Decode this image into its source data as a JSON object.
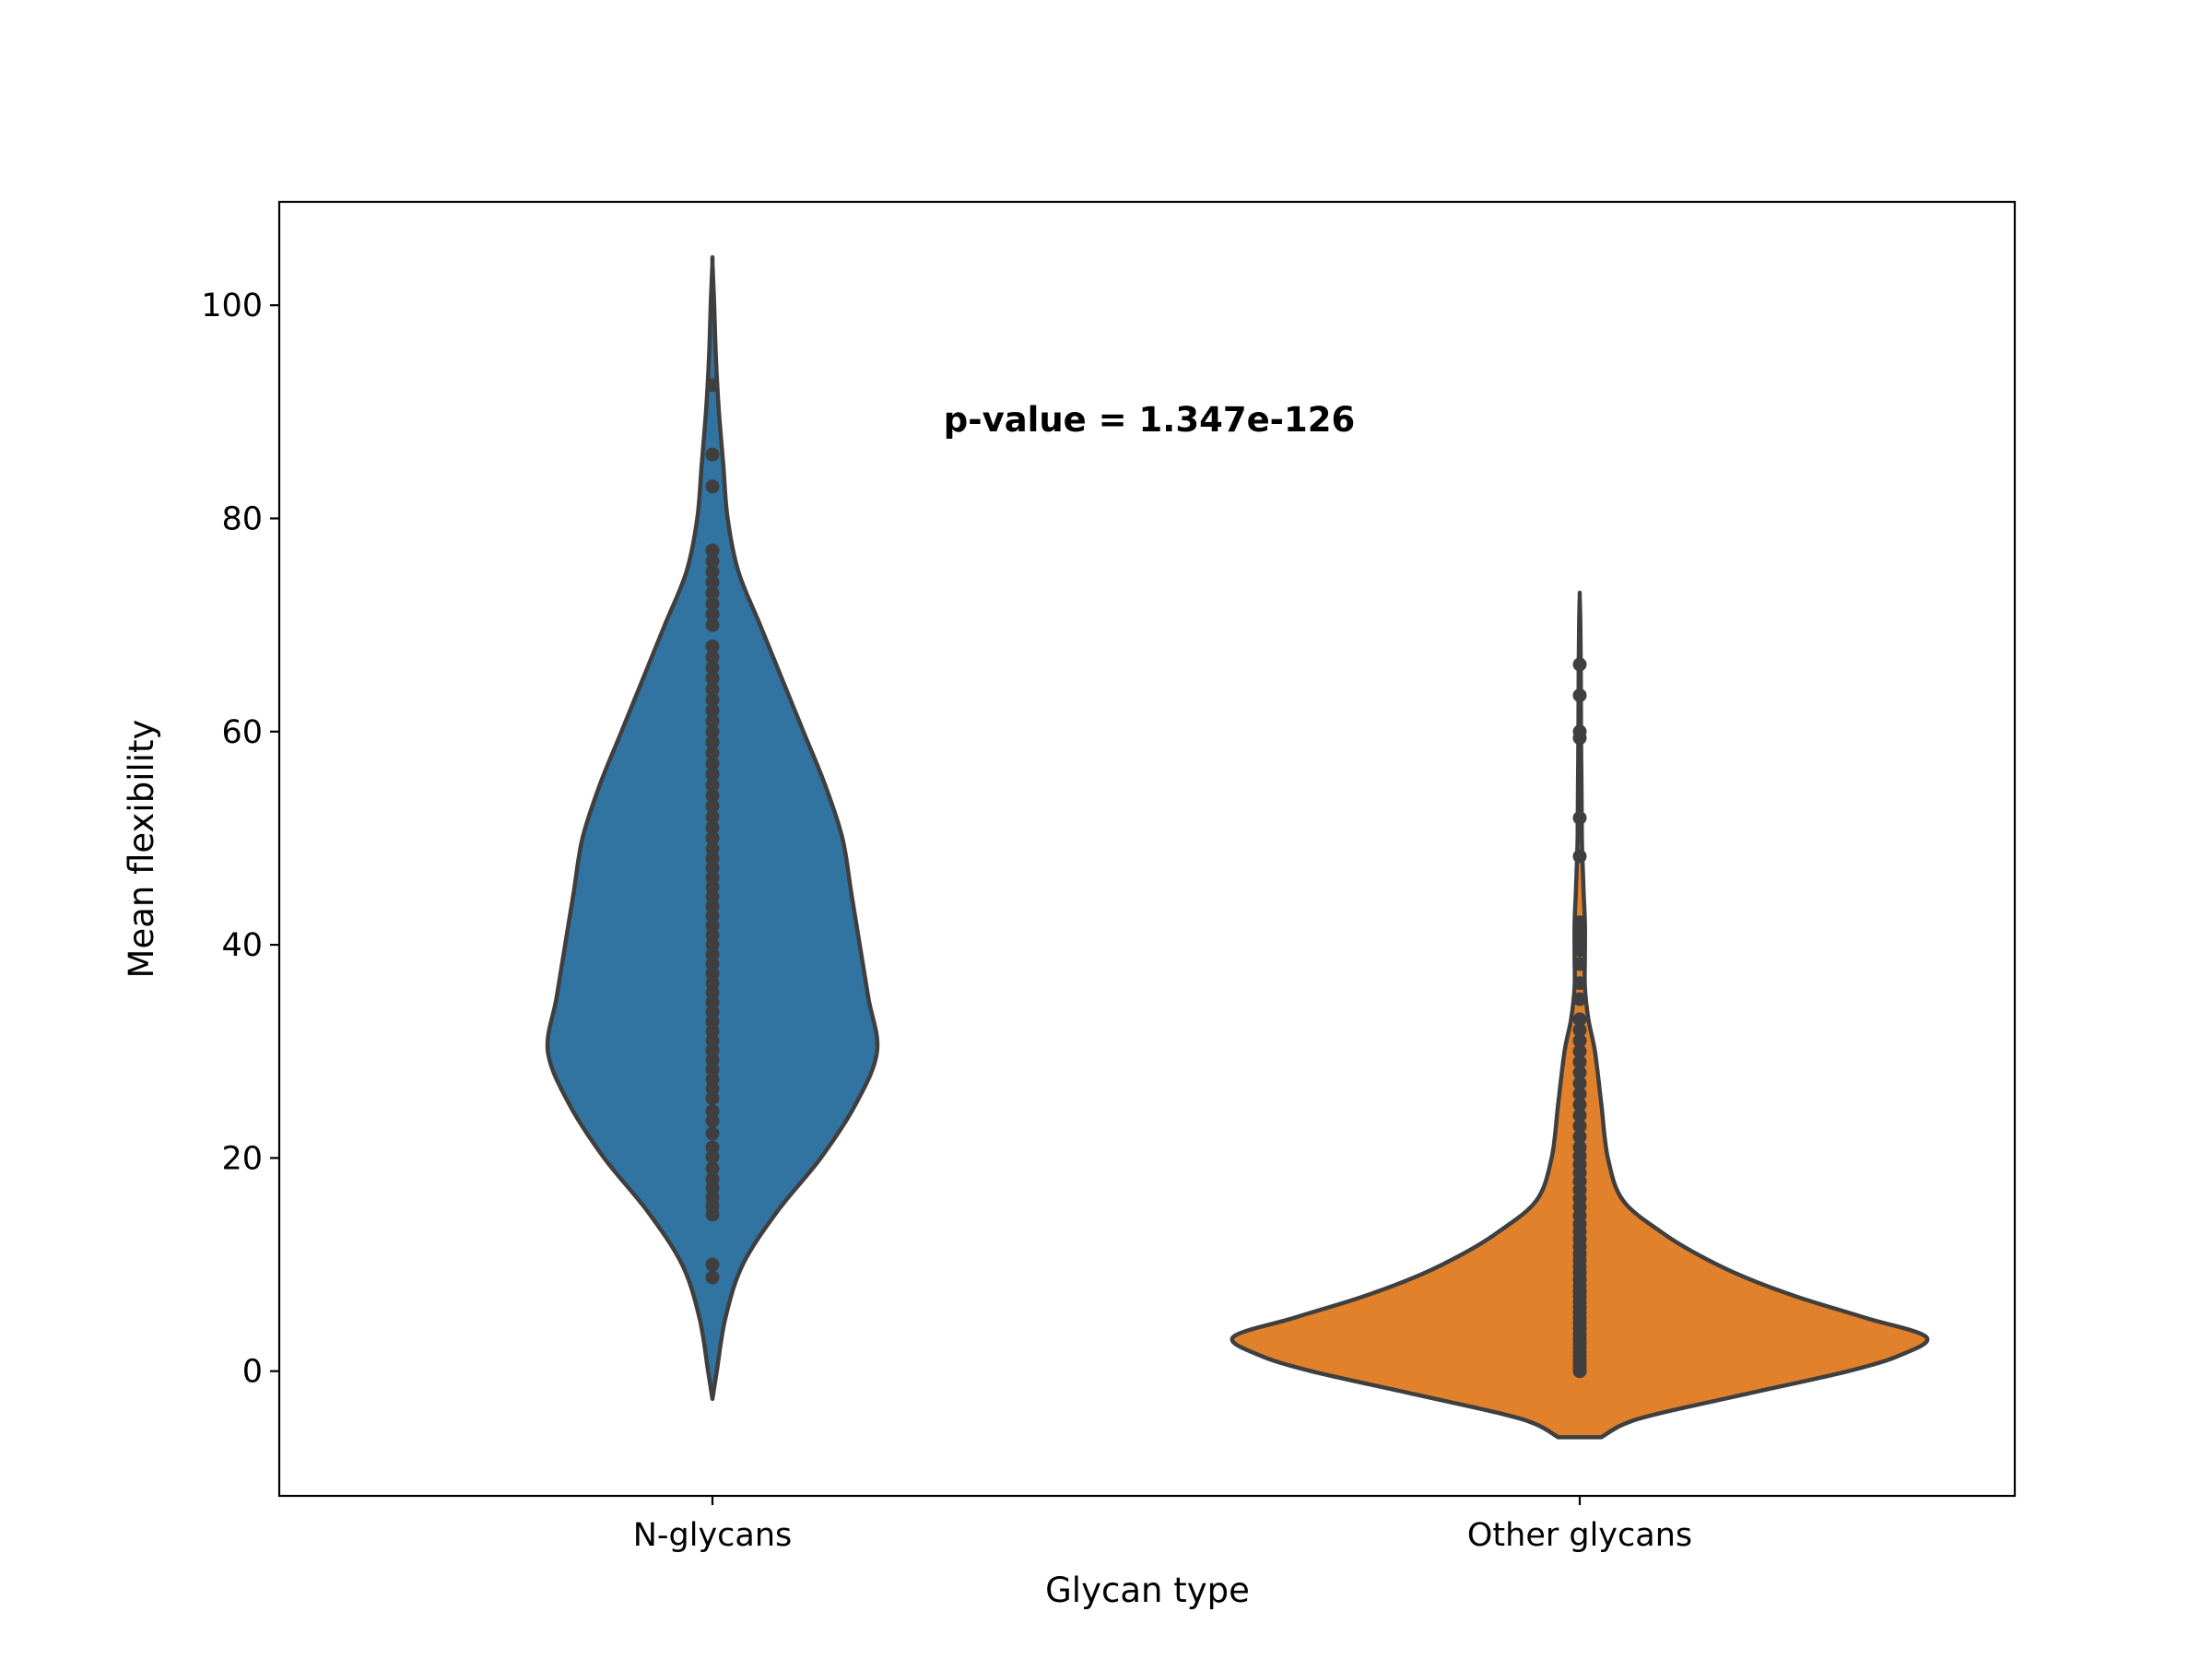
{
  "chart_data": {
    "type": "violin",
    "title": "",
    "xlabel": "Glycan type",
    "ylabel": "Mean flexibility",
    "ylim": [
      -11.7,
      109.7
    ],
    "yticks": [
      0,
      20,
      40,
      60,
      80,
      100
    ],
    "grid": false,
    "annotation": "p-value = 1.347e-126",
    "colors": {
      "N-glycans": "#3274a1",
      "Other glycans": "#e1812c",
      "outline": "#3f3f3f",
      "points": "#3f3f3f"
    },
    "categories": [
      "N-glycans",
      "Other glycans"
    ],
    "distributions": [
      {
        "category": "N-glycans",
        "density_profile": [
          {
            "y": -2.6,
            "width": 0.0
          },
          {
            "y": 0,
            "width": 0.01
          },
          {
            "y": 5,
            "width": 0.03
          },
          {
            "y": 10,
            "width": 0.07
          },
          {
            "y": 15,
            "width": 0.15
          },
          {
            "y": 20,
            "width": 0.25
          },
          {
            "y": 25,
            "width": 0.33
          },
          {
            "y": 30,
            "width": 0.38
          },
          {
            "y": 35,
            "width": 0.36
          },
          {
            "y": 40,
            "width": 0.34
          },
          {
            "y": 45,
            "width": 0.32
          },
          {
            "y": 50,
            "width": 0.3
          },
          {
            "y": 55,
            "width": 0.26
          },
          {
            "y": 60,
            "width": 0.21
          },
          {
            "y": 65,
            "width": 0.16
          },
          {
            "y": 70,
            "width": 0.11
          },
          {
            "y": 75,
            "width": 0.06
          },
          {
            "y": 80,
            "width": 0.035
          },
          {
            "y": 85,
            "width": 0.025
          },
          {
            "y": 90,
            "width": 0.015
          },
          {
            "y": 95,
            "width": 0.008
          },
          {
            "y": 100,
            "width": 0.004
          },
          {
            "y": 104,
            "width": 0.0
          }
        ],
        "points": [
          8.8,
          10.0,
          14.7,
          15.5,
          16.3,
          17.2,
          18.0,
          19.0,
          20.1,
          21.0,
          22.3,
          23.5,
          24.4,
          25.6,
          26.5,
          27.4,
          28.3,
          29.2,
          30.1,
          31.0,
          31.9,
          32.8,
          33.7,
          34.6,
          35.5,
          36.4,
          37.3,
          38.2,
          39.1,
          40.0,
          40.9,
          41.8,
          42.7,
          43.6,
          44.5,
          45.4,
          46.3,
          47.2,
          48.1,
          49.0,
          50.0,
          51.0,
          52.0,
          53.0,
          54.0,
          55.0,
          56.0,
          57.0,
          58.0,
          59.0,
          60.0,
          61.0,
          62.0,
          63.0,
          64.0,
          65.0,
          66.0,
          67.0,
          68.0,
          70.0,
          71.0,
          72.0,
          73.0,
          74.0,
          75.0,
          76.0,
          77.0,
          83.0,
          86.0,
          92.5
        ]
      },
      {
        "category": "Other glycans",
        "density_profile": [
          {
            "y": -6.2,
            "width": 0.05
          },
          {
            "y": -5,
            "width": 0.1
          },
          {
            "y": -4,
            "width": 0.18
          },
          {
            "y": -2,
            "width": 0.4
          },
          {
            "y": 0,
            "width": 0.62
          },
          {
            "y": 1.5,
            "width": 0.74
          },
          {
            "y": 3.2,
            "width": 0.8
          },
          {
            "y": 5,
            "width": 0.66
          },
          {
            "y": 7,
            "width": 0.5
          },
          {
            "y": 9,
            "width": 0.37
          },
          {
            "y": 11,
            "width": 0.27
          },
          {
            "y": 13,
            "width": 0.19
          },
          {
            "y": 16,
            "width": 0.1
          },
          {
            "y": 20,
            "width": 0.065
          },
          {
            "y": 25,
            "width": 0.05
          },
          {
            "y": 30,
            "width": 0.035
          },
          {
            "y": 33,
            "width": 0.02
          },
          {
            "y": 36,
            "width": 0.012
          },
          {
            "y": 39,
            "width": 0.012
          },
          {
            "y": 42,
            "width": 0.012
          },
          {
            "y": 45,
            "width": 0.009
          },
          {
            "y": 50,
            "width": 0.005
          },
          {
            "y": 55,
            "width": 0.004
          },
          {
            "y": 60,
            "width": 0.003
          },
          {
            "y": 65,
            "width": 0.0025
          },
          {
            "y": 70,
            "width": 0.0015
          },
          {
            "y": 72.7,
            "width": 0.0
          }
        ],
        "points": [
          0.0,
          0.3,
          0.6,
          1.0,
          1.4,
          1.8,
          2.2,
          2.6,
          3.0,
          3.5,
          4.0,
          4.5,
          5.0,
          5.5,
          6.0,
          6.5,
          7.0,
          7.5,
          8.0,
          8.6,
          9.2,
          9.8,
          10.4,
          11.0,
          11.7,
          12.4,
          13.1,
          13.8,
          14.6,
          15.4,
          16.2,
          17.0,
          17.8,
          18.6,
          19.4,
          20.2,
          21.0,
          22.0,
          23.0,
          24.0,
          25.0,
          26.0,
          27.0,
          28.0,
          29.0,
          30.0,
          31.0,
          32.0,
          33.0,
          34.9,
          36.4,
          38.2,
          39.5,
          40.2,
          41.0,
          42.1,
          48.3,
          51.9,
          59.4,
          60.0,
          63.4,
          66.3
        ]
      }
    ]
  }
}
